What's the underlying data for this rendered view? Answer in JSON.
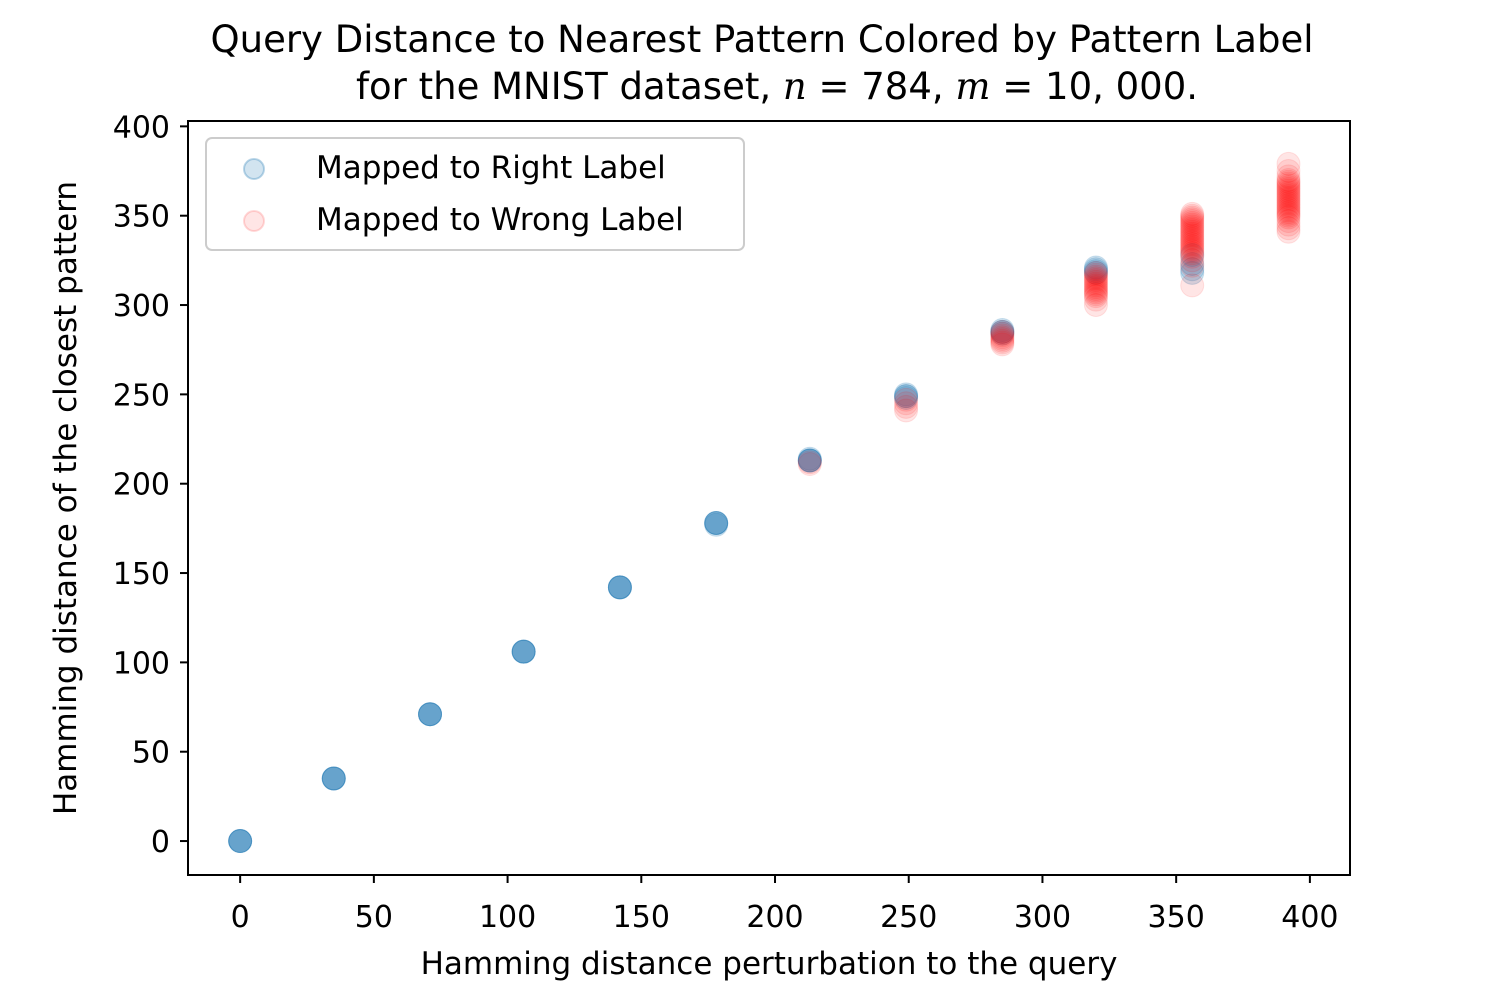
{
  "chart_data": {
    "type": "scatter",
    "title": {
      "line1": "Query Distance to Nearest Pattern Colored by Pattern Label",
      "line2_prefix": "for the MNIST dataset, ",
      "n_var": "n",
      "n_eq": " = 784, ",
      "m_var": "m",
      "m_eq": " = 10, 000."
    },
    "xlabel": "Hamming distance perturbation to the query",
    "ylabel": "Hamming distance of the closest pattern",
    "xlim": [
      -19.5,
      415
    ],
    "ylim": [
      -19,
      403
    ],
    "xticks": [
      0,
      50,
      100,
      150,
      200,
      250,
      300,
      350,
      400
    ],
    "yticks": [
      0,
      50,
      100,
      150,
      200,
      250,
      300,
      350,
      400
    ],
    "grid": false,
    "legend_position": "upper-left",
    "series": [
      {
        "name": "Mapped to Right Label",
        "color": "#1f77b4",
        "alpha": 0.2,
        "points": [
          [
            0,
            0
          ],
          [
            0,
            0
          ],
          [
            0,
            0
          ],
          [
            0,
            0
          ],
          [
            0,
            0
          ],
          [
            35,
            35
          ],
          [
            35,
            35
          ],
          [
            35,
            35
          ],
          [
            35,
            35
          ],
          [
            35,
            35
          ],
          [
            71,
            71
          ],
          [
            71,
            71
          ],
          [
            71,
            71
          ],
          [
            71,
            71
          ],
          [
            71,
            71
          ],
          [
            106,
            106
          ],
          [
            106,
            106
          ],
          [
            106,
            106
          ],
          [
            106,
            106
          ],
          [
            106,
            106
          ],
          [
            142,
            142
          ],
          [
            142,
            142
          ],
          [
            142,
            142
          ],
          [
            142,
            142
          ],
          [
            142,
            142
          ],
          [
            178,
            177
          ],
          [
            178,
            178
          ],
          [
            178,
            178
          ],
          [
            178,
            178
          ],
          [
            178,
            178
          ],
          [
            213,
            213
          ],
          [
            213,
            213
          ],
          [
            213,
            213
          ],
          [
            213,
            213
          ],
          [
            213,
            214
          ],
          [
            249,
            248
          ],
          [
            249,
            249
          ],
          [
            249,
            249
          ],
          [
            249,
            250
          ],
          [
            285,
            284
          ],
          [
            285,
            285
          ],
          [
            285,
            285
          ],
          [
            285,
            286
          ],
          [
            320,
            318
          ],
          [
            320,
            319
          ],
          [
            320,
            320
          ],
          [
            320,
            321
          ],
          [
            356,
            318
          ],
          [
            356,
            320
          ],
          [
            356,
            323
          ],
          [
            356,
            328
          ]
        ]
      },
      {
        "name": "Mapped to Wrong Label",
        "color": "#ff0000",
        "alpha": 0.1,
        "points": [
          [
            213,
            211
          ],
          [
            213,
            212
          ],
          [
            249,
            241
          ],
          [
            249,
            243
          ],
          [
            249,
            245
          ],
          [
            249,
            247
          ],
          [
            285,
            278
          ],
          [
            285,
            279
          ],
          [
            285,
            280
          ],
          [
            285,
            281
          ],
          [
            285,
            282
          ],
          [
            285,
            283
          ],
          [
            285,
            284
          ],
          [
            285,
            285
          ],
          [
            320,
            300
          ],
          [
            320,
            303
          ],
          [
            320,
            305
          ],
          [
            320,
            306
          ],
          [
            320,
            307
          ],
          [
            320,
            308
          ],
          [
            320,
            309
          ],
          [
            320,
            310
          ],
          [
            320,
            311
          ],
          [
            320,
            312
          ],
          [
            320,
            313
          ],
          [
            320,
            314
          ],
          [
            320,
            315
          ],
          [
            320,
            316
          ],
          [
            320,
            317
          ],
          [
            320,
            318
          ],
          [
            356,
            311
          ],
          [
            356,
            322
          ],
          [
            356,
            325
          ],
          [
            356,
            327
          ],
          [
            356,
            329
          ],
          [
            356,
            330
          ],
          [
            356,
            331
          ],
          [
            356,
            332
          ],
          [
            356,
            333
          ],
          [
            356,
            334
          ],
          [
            356,
            335
          ],
          [
            356,
            336
          ],
          [
            356,
            337
          ],
          [
            356,
            338
          ],
          [
            356,
            339
          ],
          [
            356,
            340
          ],
          [
            356,
            341
          ],
          [
            356,
            342
          ],
          [
            356,
            343
          ],
          [
            356,
            344
          ],
          [
            356,
            345
          ],
          [
            356,
            346
          ],
          [
            356,
            347
          ],
          [
            356,
            348
          ],
          [
            356,
            349
          ],
          [
            356,
            350
          ],
          [
            356,
            351
          ],
          [
            392,
            341
          ],
          [
            392,
            343
          ],
          [
            392,
            345
          ],
          [
            392,
            347
          ],
          [
            392,
            349
          ],
          [
            392,
            350
          ],
          [
            392,
            351
          ],
          [
            392,
            352
          ],
          [
            392,
            353
          ],
          [
            392,
            354
          ],
          [
            392,
            355
          ],
          [
            392,
            356
          ],
          [
            392,
            357
          ],
          [
            392,
            358
          ],
          [
            392,
            359
          ],
          [
            392,
            360
          ],
          [
            392,
            361
          ],
          [
            392,
            362
          ],
          [
            392,
            363
          ],
          [
            392,
            364
          ],
          [
            392,
            365
          ],
          [
            392,
            366
          ],
          [
            392,
            367
          ],
          [
            392,
            368
          ],
          [
            392,
            369
          ],
          [
            392,
            370
          ],
          [
            392,
            372
          ],
          [
            392,
            375
          ],
          [
            392,
            379
          ]
        ]
      }
    ]
  }
}
